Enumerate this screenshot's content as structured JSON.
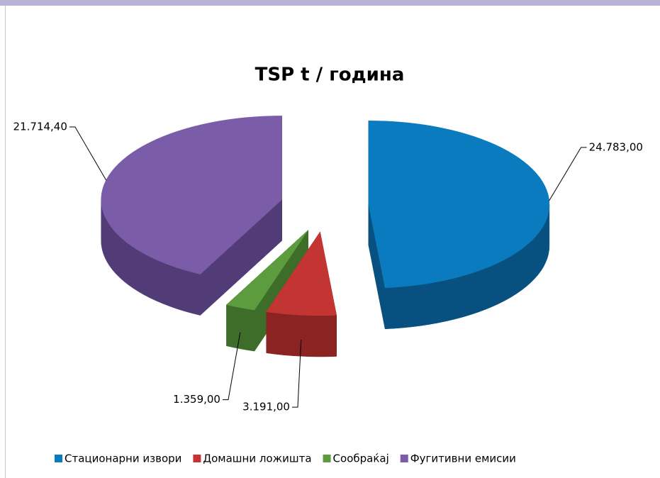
{
  "chart_data": {
    "type": "pie3d",
    "title": "TSP t / година",
    "categories": [
      "Стационарни извори",
      "Домашни ложишта",
      "Сообраќај",
      "Фугитивни емисии"
    ],
    "values": [
      24783,
      3191,
      1359,
      21714.4
    ],
    "value_labels": [
      "24.783,00",
      "3.191,00",
      "1.359,00",
      "21.714,40"
    ],
    "colors": [
      "#0a7bbf",
      "#c23532",
      "#5c9c3e",
      "#7b5ca9"
    ],
    "side_colors": [
      "#08507f",
      "#8a2321",
      "#3d6d28",
      "#513c78"
    ],
    "legend": "bottom"
  }
}
